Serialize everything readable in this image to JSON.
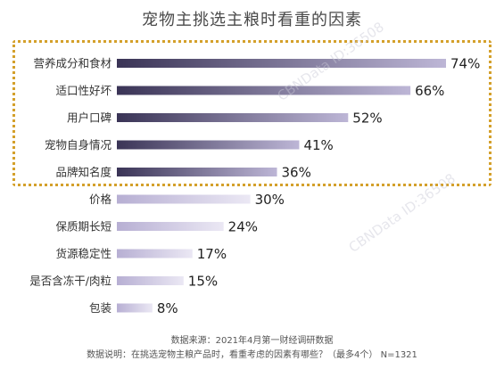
{
  "watermark": "CBNData ID:36508",
  "chart_data": {
    "type": "bar",
    "orientation": "horizontal",
    "title": "宠物主挑选主粮时看重的因素",
    "categories": [
      "营养成分和食材",
      "适口性好坏",
      "用户口碑",
      "宠物自身情况",
      "品牌知名度",
      "价格",
      "保质期长短",
      "货源稳定性",
      "是否含冻干/肉粒",
      "包装"
    ],
    "values": [
      74,
      66,
      52,
      41,
      36,
      30,
      24,
      17,
      15,
      8
    ],
    "value_labels": [
      "74%",
      "66%",
      "52%",
      "41%",
      "36%",
      "30%",
      "24%",
      "17%",
      "15%",
      "8%"
    ],
    "xlim": [
      0,
      74
    ],
    "highlighted_count": 5,
    "colors": {
      "dark_start": "#3a3456",
      "dark_end": "#bdb6d6",
      "light_start": "#b7afd3",
      "light_end": "#ebe8f4",
      "highlight_border": "#d4a02b"
    }
  },
  "footer": {
    "source": "数据来源：2021年4月第一财经调研数据",
    "note": "数据说明：在挑选宠物主粮产品时，看重考虑的因素有哪些？（最多4个） N=1321"
  }
}
